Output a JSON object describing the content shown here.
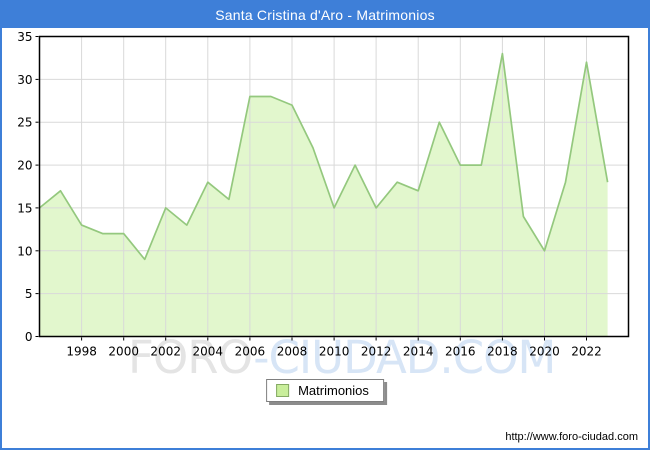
{
  "window": {
    "title": "Santa Cristina d'Aro - Matrimonios"
  },
  "chart_data": {
    "type": "area",
    "title": "Santa Cristina d'Aro - Matrimonios",
    "x": [
      1996,
      1997,
      1998,
      1999,
      2000,
      2001,
      2002,
      2003,
      2004,
      2005,
      2006,
      2007,
      2008,
      2009,
      2010,
      2011,
      2012,
      2013,
      2014,
      2015,
      2016,
      2017,
      2018,
      2019,
      2020,
      2021,
      2022,
      2023
    ],
    "series": [
      {
        "name": "Matrimonios",
        "values": [
          15,
          17,
          13,
          12,
          12,
          9,
          15,
          13,
          18,
          16,
          28,
          28,
          27,
          22,
          15,
          20,
          15,
          18,
          17,
          25,
          20,
          20,
          33,
          14,
          10,
          18,
          32,
          18
        ]
      }
    ],
    "xlabel": "",
    "ylabel": "",
    "ylim": [
      0,
      35
    ],
    "yticks": [
      0,
      5,
      10,
      15,
      20,
      25,
      30,
      35
    ],
    "xticks": [
      1998,
      2000,
      2002,
      2004,
      2006,
      2008,
      2010,
      2012,
      2014,
      2016,
      2018,
      2020,
      2022
    ],
    "grid": true,
    "legend_position": "bottom-center"
  },
  "legend": {
    "label": "Matrimonios"
  },
  "watermark": {
    "part1": "FORO",
    "part2": "-CIUDAD.COM"
  },
  "footer": {
    "url": "http://www.foro-ciudad.com"
  },
  "colors": {
    "accent_blue": "#3e7fd8",
    "title_text": "#ffffff",
    "plot_background": "#ffffff",
    "plot_border": "#000000",
    "grid": "#d9d9d9",
    "area_fill": "#e2f7cd",
    "series_line": "#94c87e",
    "legend_swatch": "#c9ee9b",
    "watermark_gray": "#e4e4e4",
    "watermark_blue": "#d7e5f6",
    "axis_text": "#000000"
  }
}
